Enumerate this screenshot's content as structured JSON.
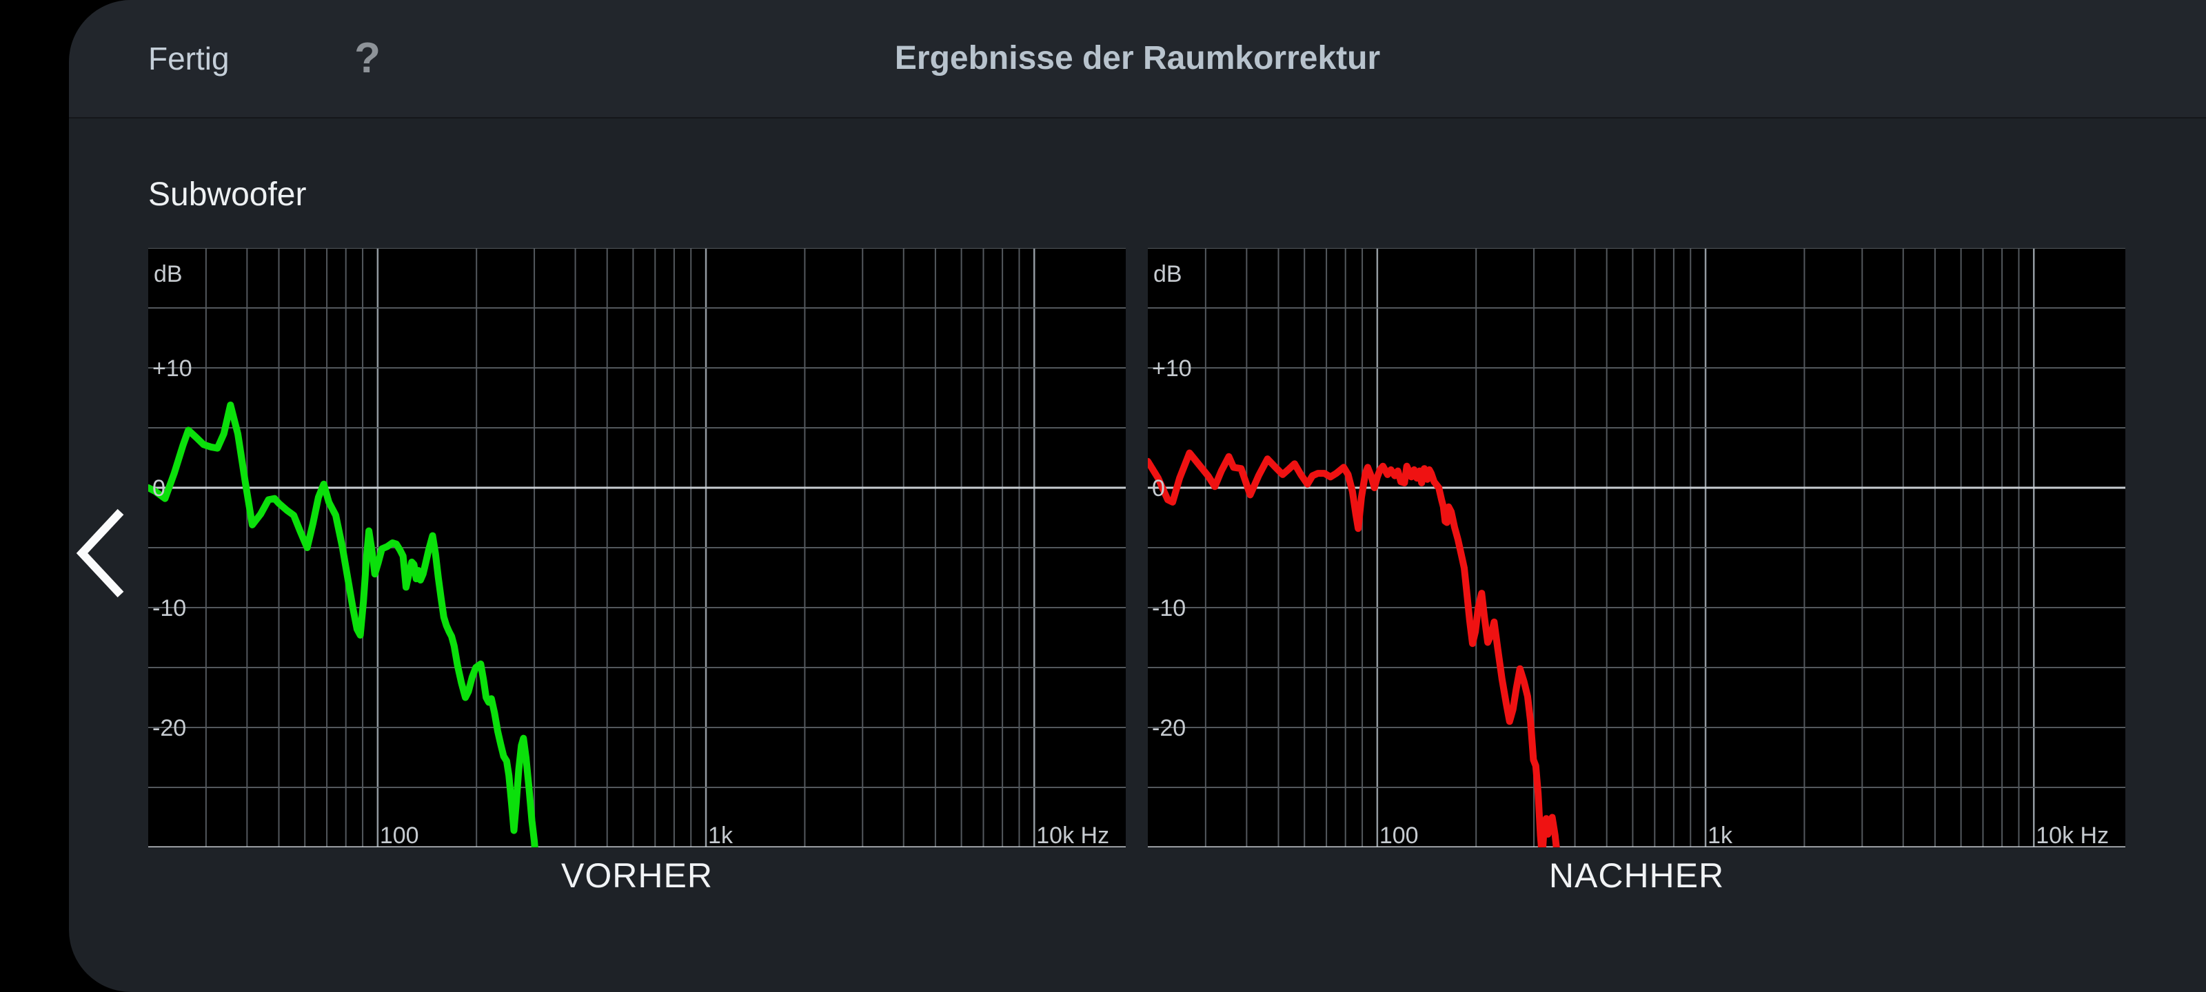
{
  "header": {
    "done_label": "Fertig",
    "help_icon": "?",
    "title": "Ergebnisse der Raumkorrektur"
  },
  "section": {
    "speaker_label": "Subwoofer"
  },
  "colors": {
    "chart_bg": "#000000",
    "grid_minor": "#53585d",
    "grid_mid": "#939aa0",
    "grid_major": "#c9ced3",
    "axis_label": "#c6cbd0",
    "before_curve": "#0be00b",
    "after_curve": "#ef1212"
  },
  "chart_data": [
    {
      "type": "line",
      "caption": "VORHER",
      "color": "#0be00b",
      "y_axis_label": "dB",
      "xlim": [
        20,
        19000
      ],
      "ylim": [
        -30,
        20
      ],
      "grid": "log-x, 5 dB steps",
      "x_ticks": [
        {
          "f": 100,
          "label": "100"
        },
        {
          "f": 1000,
          "label": "1k"
        },
        {
          "f": 10000,
          "label": "10k Hz"
        }
      ],
      "y_ticks": [
        {
          "db": 10,
          "label": "+10"
        },
        {
          "db": 0,
          "label": "0"
        },
        {
          "db": -10,
          "label": "-10"
        },
        {
          "db": -20,
          "label": "-20"
        }
      ],
      "points": [
        [
          20,
          0
        ],
        [
          21,
          -0.3
        ],
        [
          22.5,
          -0.9
        ],
        [
          24,
          1.2
        ],
        [
          25.5,
          3.5
        ],
        [
          26.5,
          4.8
        ],
        [
          28,
          4.2
        ],
        [
          29.5,
          3.6
        ],
        [
          31,
          3.4
        ],
        [
          32.5,
          3.3
        ],
        [
          34,
          4.5
        ],
        [
          35.6,
          6.9
        ],
        [
          37.5,
          4.5
        ],
        [
          39.5,
          0.5
        ],
        [
          41.5,
          -3.1
        ],
        [
          44,
          -2.2
        ],
        [
          46.5,
          -1
        ],
        [
          48.5,
          -0.9
        ],
        [
          50,
          -1.3
        ],
        [
          53,
          -1.9
        ],
        [
          55.5,
          -2.3
        ],
        [
          58,
          -3.6
        ],
        [
          61,
          -5
        ],
        [
          63.5,
          -3
        ],
        [
          66,
          -0.8
        ],
        [
          68.5,
          0.3
        ],
        [
          71,
          -1.2
        ],
        [
          74.5,
          -2.3
        ],
        [
          78,
          -4.9
        ],
        [
          81,
          -7.5
        ],
        [
          84,
          -10
        ],
        [
          86.5,
          -11.8
        ],
        [
          88.5,
          -12.3
        ],
        [
          90.5,
          -9.5
        ],
        [
          92.5,
          -5.8
        ],
        [
          94,
          -3.6
        ],
        [
          96,
          -5.2
        ],
        [
          98,
          -7.2
        ],
        [
          100.5,
          -6.2
        ],
        [
          103,
          -5.1
        ],
        [
          107,
          -4.9
        ],
        [
          111,
          -4.6
        ],
        [
          114,
          -4.7
        ],
        [
          117,
          -5.2
        ],
        [
          119.5,
          -5.7
        ],
        [
          122,
          -8.3
        ],
        [
          124.5,
          -7.2
        ],
        [
          127,
          -6.2
        ],
        [
          129,
          -6.4
        ],
        [
          131,
          -7.6
        ],
        [
          133,
          -6.9
        ],
        [
          135,
          -7.7
        ],
        [
          137.5,
          -7.2
        ],
        [
          140,
          -6.3
        ],
        [
          143,
          -5.2
        ],
        [
          147,
          -4
        ],
        [
          150,
          -5.5
        ],
        [
          153,
          -7.5
        ],
        [
          156,
          -9.2
        ],
        [
          159,
          -10.8
        ],
        [
          162,
          -11.5
        ],
        [
          165,
          -12
        ],
        [
          168,
          -12.4
        ],
        [
          171,
          -13.2
        ],
        [
          175,
          -14.8
        ],
        [
          180,
          -16.3
        ],
        [
          185,
          -17.5
        ],
        [
          189,
          -17
        ],
        [
          194,
          -15.8
        ],
        [
          199,
          -15
        ],
        [
          206,
          -14.7
        ],
        [
          210,
          -16
        ],
        [
          214,
          -17.5
        ],
        [
          218,
          -17.9
        ],
        [
          222,
          -17.6
        ],
        [
          227,
          -18.8
        ],
        [
          232,
          -20.3
        ],
        [
          237,
          -21.4
        ],
        [
          242,
          -22.4
        ],
        [
          247,
          -22.8
        ],
        [
          251,
          -24
        ],
        [
          256,
          -26.5
        ],
        [
          260,
          -28.6
        ],
        [
          264,
          -26.5
        ],
        [
          269,
          -23.5
        ],
        [
          274,
          -21.5
        ],
        [
          278,
          -20.9
        ],
        [
          283,
          -22.5
        ],
        [
          289,
          -25
        ],
        [
          295,
          -27.8
        ],
        [
          300,
          -29.5
        ],
        [
          304,
          -31.5
        ]
      ]
    },
    {
      "type": "line",
      "caption": "NACHHER",
      "color": "#ef1212",
      "y_axis_label": "dB",
      "xlim": [
        20,
        19000
      ],
      "ylim": [
        -30,
        20
      ],
      "grid": "log-x, 5 dB steps",
      "x_ticks": [
        {
          "f": 100,
          "label": "100"
        },
        {
          "f": 1000,
          "label": "1k"
        },
        {
          "f": 10000,
          "label": "10k Hz"
        }
      ],
      "y_ticks": [
        {
          "db": 10,
          "label": "+10"
        },
        {
          "db": 0,
          "label": "0"
        },
        {
          "db": -10,
          "label": "-10"
        },
        {
          "db": -20,
          "label": "-20"
        }
      ],
      "points": [
        [
          20,
          2.2
        ],
        [
          21.5,
          0.8
        ],
        [
          23,
          -1
        ],
        [
          23.8,
          -1.2
        ],
        [
          25,
          0.8
        ],
        [
          26.8,
          2.9
        ],
        [
          28.5,
          2
        ],
        [
          30.5,
          1
        ],
        [
          32,
          0.1
        ],
        [
          33.5,
          1.4
        ],
        [
          35.3,
          2.6
        ],
        [
          36.5,
          1.7
        ],
        [
          38.5,
          1.6
        ],
        [
          41,
          -0.6
        ],
        [
          43.5,
          1
        ],
        [
          46.3,
          2.4
        ],
        [
          49,
          1.7
        ],
        [
          51.5,
          1.1
        ],
        [
          54,
          1.6
        ],
        [
          56,
          2
        ],
        [
          58.5,
          1.1
        ],
        [
          61.3,
          0.3
        ],
        [
          63.5,
          1
        ],
        [
          66,
          1.2
        ],
        [
          69,
          1.2
        ],
        [
          72,
          0.9
        ],
        [
          75,
          1.2
        ],
        [
          79,
          1.7
        ],
        [
          81.5,
          1.1
        ],
        [
          84,
          -0.3
        ],
        [
          86,
          -2.2
        ],
        [
          87.5,
          -3.4
        ],
        [
          89.5,
          -0.8
        ],
        [
          92,
          1.2
        ],
        [
          93.5,
          1.7
        ],
        [
          96,
          0.9
        ],
        [
          98,
          0
        ],
        [
          100,
          0.9
        ],
        [
          102,
          1.5
        ],
        [
          104,
          1.8
        ],
        [
          107.5,
          1.1
        ],
        [
          110,
          1.5
        ],
        [
          113,
          1
        ],
        [
          115.5,
          1.4
        ],
        [
          118,
          0.5
        ],
        [
          121,
          0.4
        ],
        [
          123,
          1.8
        ],
        [
          127,
          0.9
        ],
        [
          129.5,
          1.5
        ],
        [
          132,
          0.8
        ],
        [
          134.5,
          1.4
        ],
        [
          136.5,
          0.4
        ],
        [
          139,
          1.6
        ],
        [
          142,
          0.7
        ],
        [
          144,
          1.5
        ],
        [
          146,
          1.2
        ],
        [
          149,
          0.5
        ],
        [
          152,
          0.2
        ],
        [
          154,
          0
        ],
        [
          157,
          -1
        ],
        [
          159,
          -1.6
        ],
        [
          161,
          -2.8
        ],
        [
          163,
          -2.9
        ],
        [
          165,
          -1.6
        ],
        [
          168,
          -2
        ],
        [
          172,
          -3.3
        ],
        [
          176,
          -4.3
        ],
        [
          181,
          -5.8
        ],
        [
          184,
          -6.7
        ],
        [
          187,
          -8.5
        ],
        [
          191,
          -11
        ],
        [
          195,
          -13
        ],
        [
          199,
          -12
        ],
        [
          203,
          -10
        ],
        [
          208,
          -8.8
        ],
        [
          212,
          -10.8
        ],
        [
          217,
          -12.9
        ],
        [
          222,
          -12.3
        ],
        [
          227,
          -11.2
        ],
        [
          233,
          -13.5
        ],
        [
          240,
          -16
        ],
        [
          247,
          -18
        ],
        [
          253,
          -19.5
        ],
        [
          259,
          -18.5
        ],
        [
          265,
          -16.8
        ],
        [
          272,
          -15.1
        ],
        [
          280,
          -16.2
        ],
        [
          287,
          -17.4
        ],
        [
          293,
          -19.5
        ],
        [
          299,
          -22.7
        ],
        [
          304,
          -23.2
        ],
        [
          309,
          -25.5
        ],
        [
          314,
          -29
        ],
        [
          318,
          -30.8
        ],
        [
          322,
          -28.5
        ],
        [
          327,
          -27.6
        ],
        [
          331,
          -28.9
        ],
        [
          336,
          -28.2
        ],
        [
          341,
          -27.5
        ],
        [
          348,
          -29
        ],
        [
          356,
          -31.5
        ]
      ]
    }
  ]
}
